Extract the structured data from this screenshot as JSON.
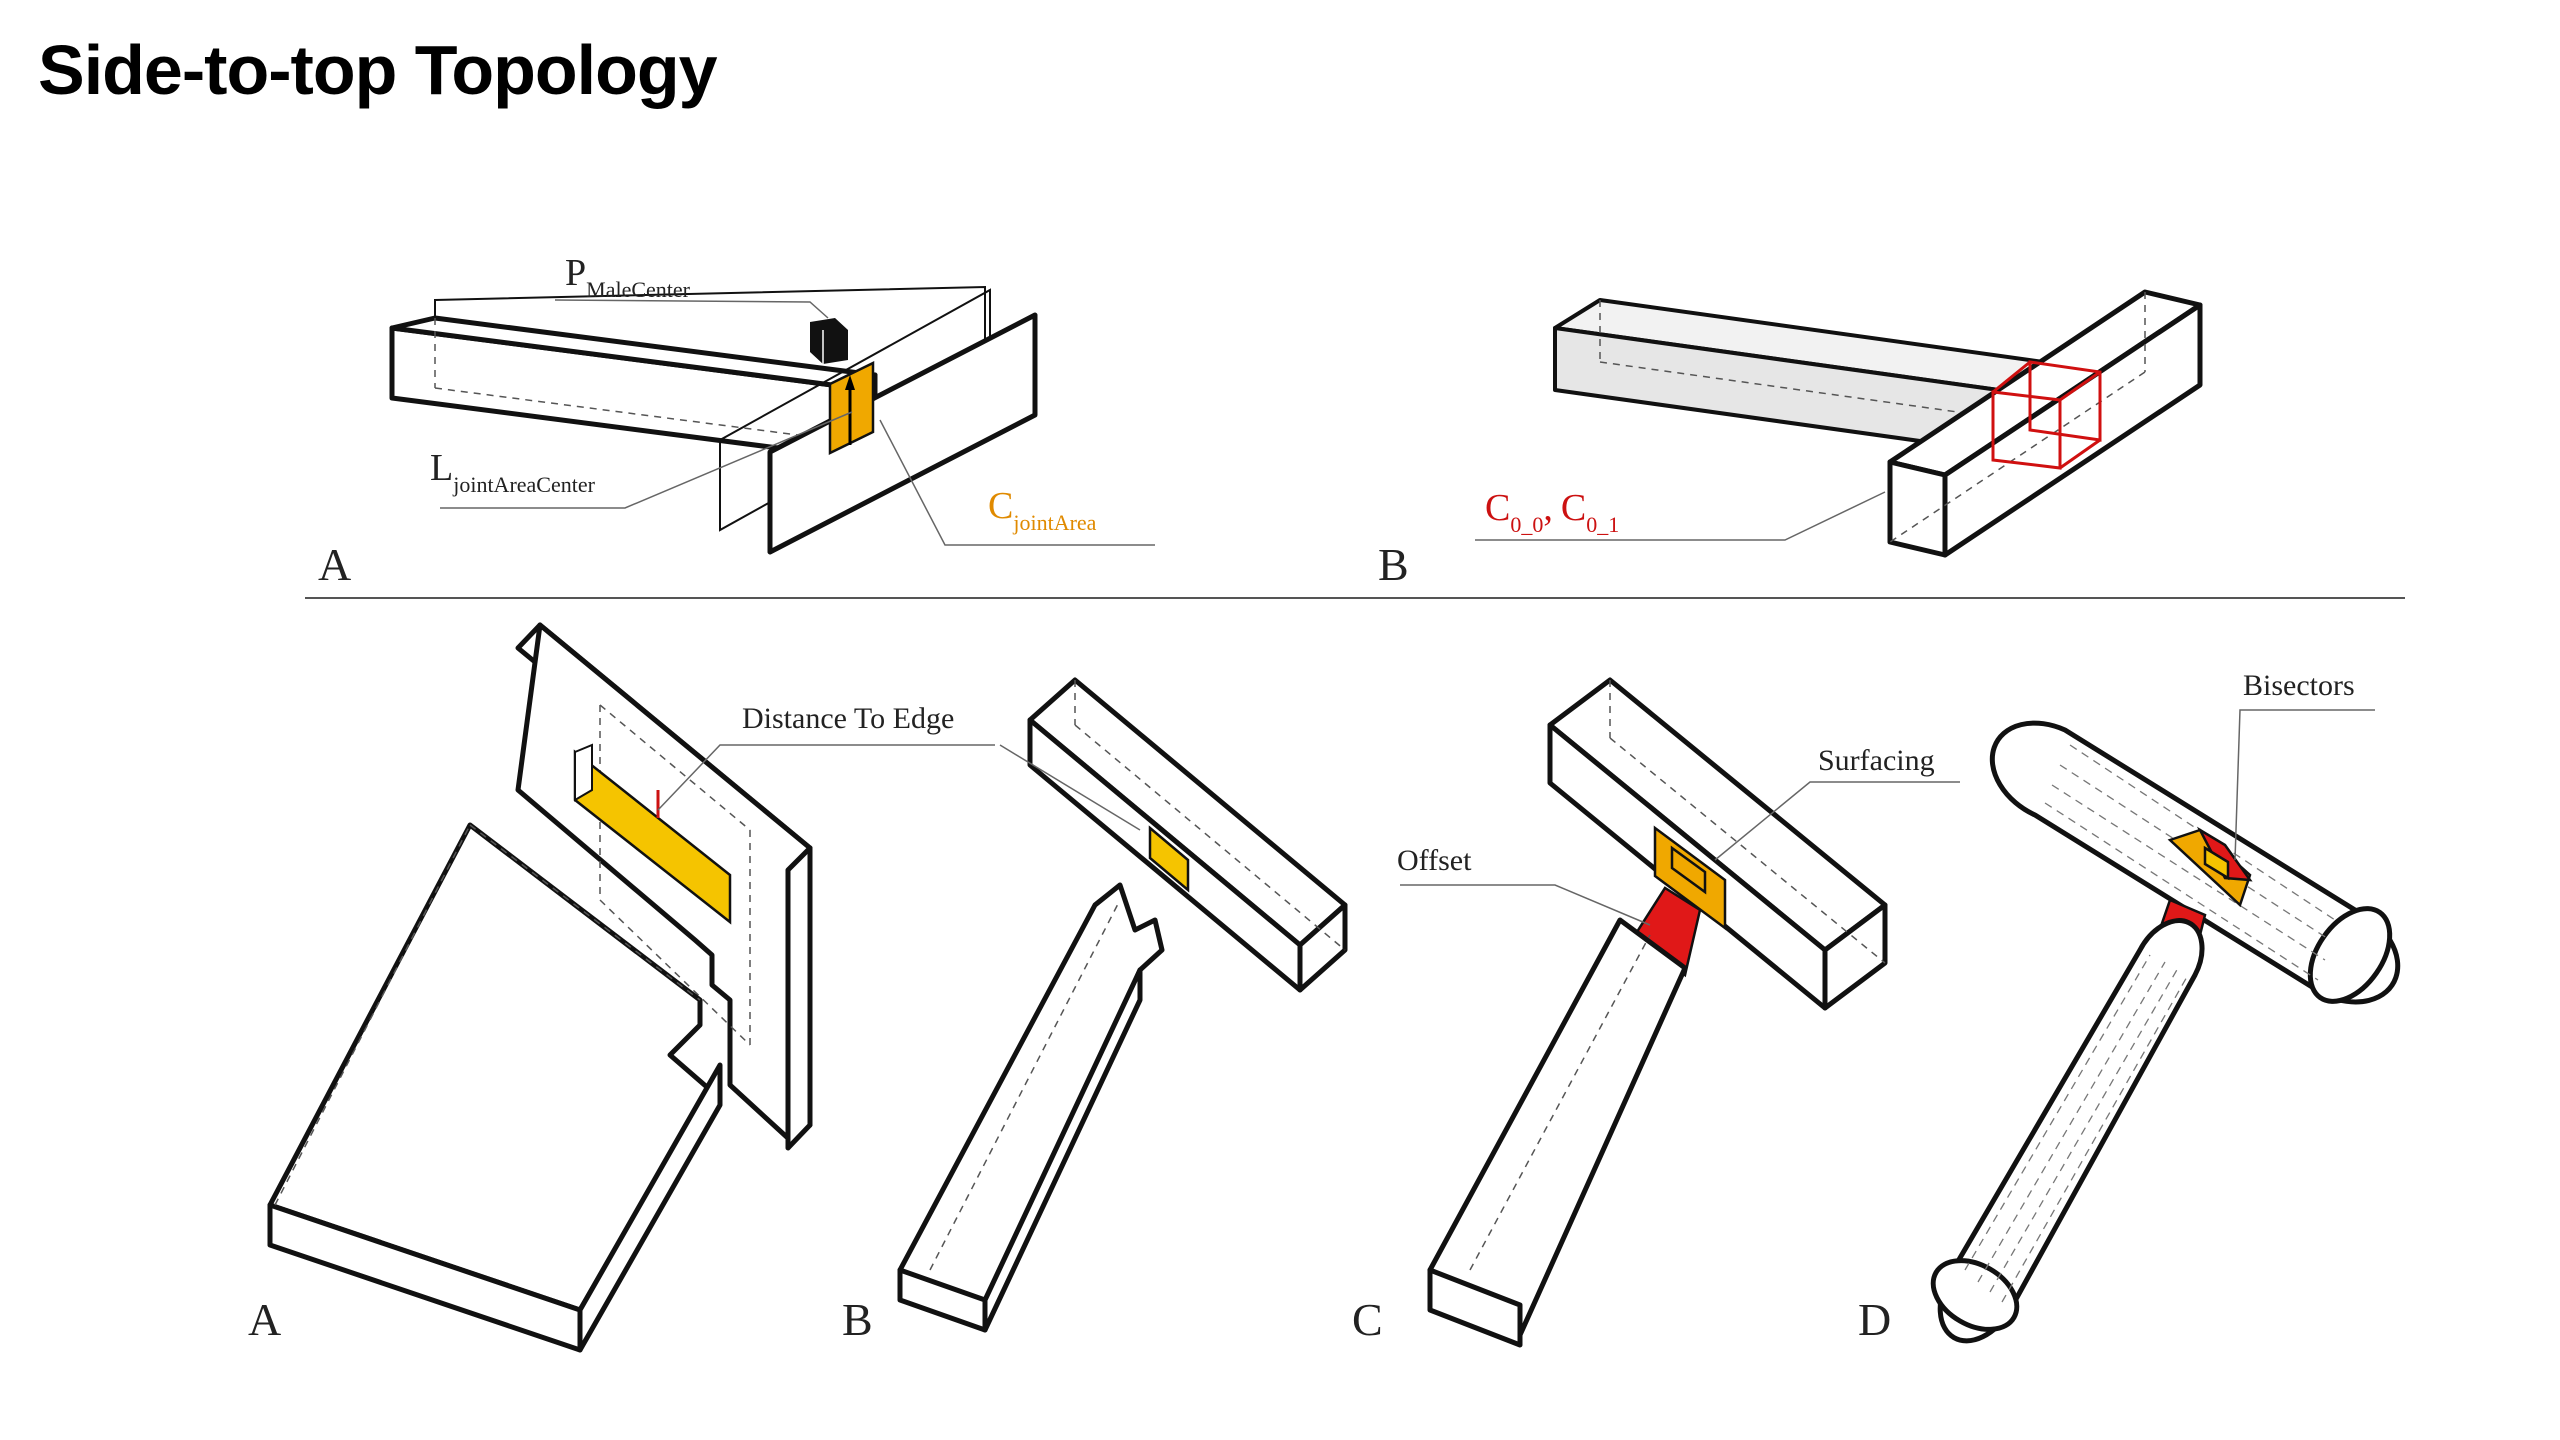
{
  "title": "Side-to-top Topology",
  "top_row": {
    "panel_a": {
      "label": "A",
      "p_symbol": "P",
      "p_subscript": "MaleCenter",
      "l_symbol": "L",
      "l_subscript": "jointAreaCenter",
      "c_symbol": "C",
      "c_subscript": "jointArea"
    },
    "panel_b": {
      "label": "B",
      "c00_symbol": "C",
      "c00_subscript": "0_0",
      "separator": ",",
      "c01_symbol": "C",
      "c01_subscript": "0_1"
    }
  },
  "bottom_row": {
    "panel_a": {
      "label": "A"
    },
    "panel_b": {
      "label": "B",
      "callout": "Distance To Edge"
    },
    "panel_c": {
      "label": "C",
      "callout_offset": "Offset",
      "callout_surfacing": "Surfacing"
    },
    "panel_d": {
      "label": "D",
      "callout": "Bisectors"
    }
  },
  "colors": {
    "joint_area": "#f5c400",
    "orange_label": "#e08a00",
    "red_label": "#cc1111",
    "offset_red": "#e01818"
  }
}
